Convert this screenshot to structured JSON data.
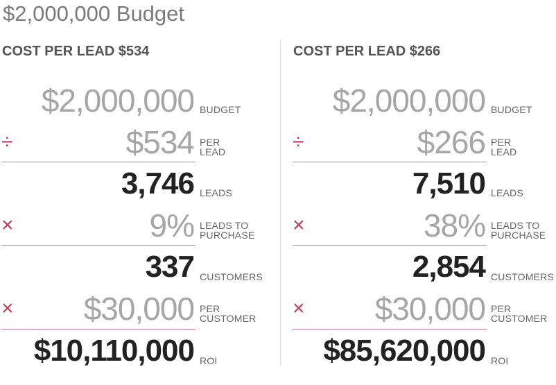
{
  "page": {
    "title": "$2,000,000 Budget"
  },
  "columns": [
    {
      "heading": "COST PER LEAD $534",
      "budget": {
        "value": "$2,000,000",
        "unit": "BUDGET"
      },
      "cost_per_lead": {
        "op": "÷",
        "value": "$534",
        "unit": "PER\nLEAD"
      },
      "leads": {
        "value": "3,746",
        "unit": "LEADS"
      },
      "conversion": {
        "op": "×",
        "value": "9%",
        "unit": "LEADS TO\nPURCHASE"
      },
      "customers": {
        "value": "337",
        "unit": "CUSTOMERS"
      },
      "value_per_customer": {
        "op": "×",
        "value": "$30,000",
        "unit": "PER\nCUSTOMER"
      },
      "roi": {
        "value": "$10,110,000",
        "unit": "ROI"
      }
    },
    {
      "heading": "COST PER LEAD $266",
      "budget": {
        "value": "$2,000,000",
        "unit": "BUDGET"
      },
      "cost_per_lead": {
        "op": "÷",
        "value": "$266",
        "unit": "PER\nLEAD"
      },
      "leads": {
        "value": "7,510",
        "unit": "LEADS"
      },
      "conversion": {
        "op": "×",
        "value": "38%",
        "unit": "LEADS TO\nPURCHASE"
      },
      "customers": {
        "value": "2,854",
        "unit": "CUSTOMERS"
      },
      "value_per_customer": {
        "op": "×",
        "value": "$30,000",
        "unit": "PER\nCUSTOMER"
      },
      "roi": {
        "value": "$85,620,000",
        "unit": "ROI"
      }
    }
  ],
  "colors": {
    "accent": "#c1395a",
    "rule": "#cf7b8d",
    "heading": "#555555",
    "light_value": "#a6a6a6",
    "bold_value": "#222222"
  }
}
